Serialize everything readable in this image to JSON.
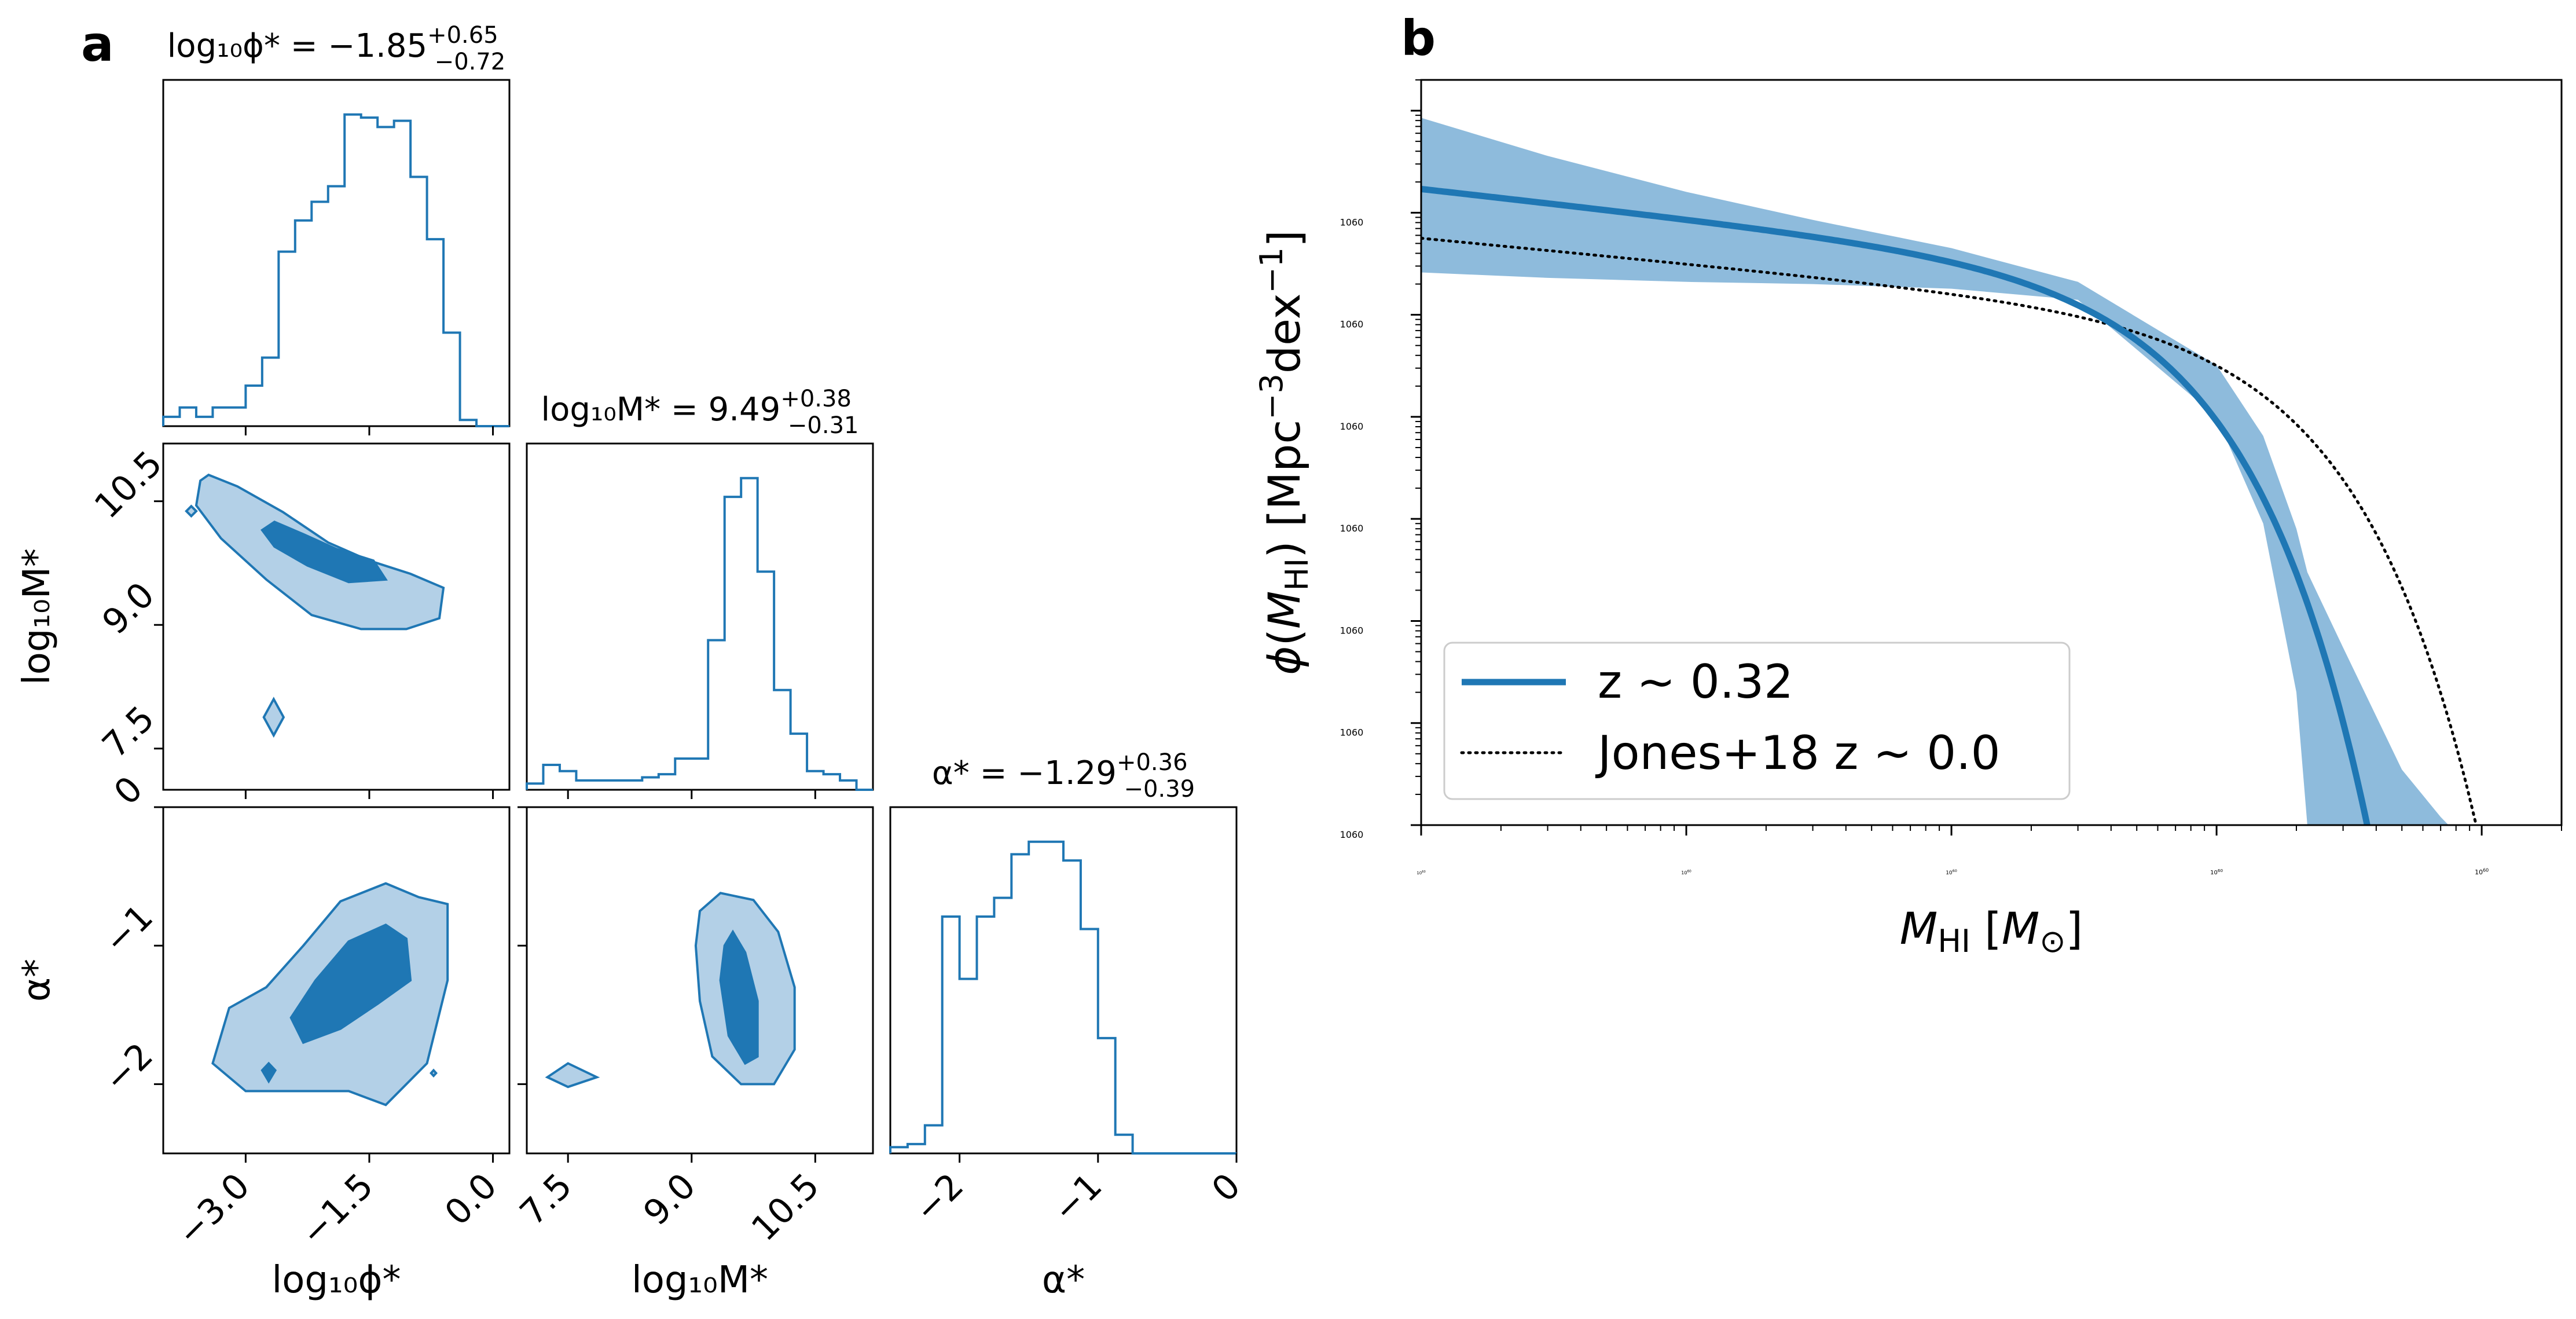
{
  "panels": {
    "a": {
      "letter": "a"
    },
    "b": {
      "letter": "b"
    }
  },
  "colors": {
    "series": "#1f77b4",
    "band": "#8ebbdc",
    "contour_outer": "#b3d0e7",
    "contour_inner": "#1f77b4",
    "reference": "#000000"
  },
  "chart_data": [
    {
      "type": "corner",
      "panel": "a",
      "parameters": [
        {
          "name": "log10phi",
          "axis_label": "log₁₀ϕ*",
          "title": {
            "prefix": "log₁₀ϕ* = −1.85",
            "plus": "+0.65",
            "minus": "−0.72"
          },
          "range": [
            -4.0,
            0.2
          ],
          "ticks": [
            "−3.0",
            "−1.5",
            "0.0"
          ],
          "tick_values": [
            -3.0,
            -1.5,
            0.0
          ]
        },
        {
          "name": "log10M",
          "axis_label": "log₁₀M*",
          "title": {
            "prefix": "log₁₀M* = 9.49",
            "plus": "+0.38",
            "minus": "−0.31"
          },
          "range": [
            7.0,
            11.2
          ],
          "ticks": [
            "7.5",
            "9.0",
            "10.5"
          ],
          "tick_values": [
            7.5,
            9.0,
            10.5
          ]
        },
        {
          "name": "alpha",
          "axis_label": "α*",
          "title": {
            "prefix": "α* = −1.29",
            "plus": "+0.36",
            "minus": "−0.39"
          },
          "range": [
            -2.5,
            0.0
          ],
          "ticks": [
            "−2",
            "−1",
            "0"
          ],
          "tick_values": [
            -2,
            -1,
            0
          ]
        }
      ],
      "histograms": [
        {
          "param": "log10phi",
          "edges_start": -4.0,
          "bin_width": 0.2,
          "counts": [
            0.03,
            0.06,
            0.03,
            0.06,
            0.06,
            0.13,
            0.22,
            0.56,
            0.66,
            0.72,
            0.77,
            1.0,
            0.99,
            0.96,
            0.98,
            0.8,
            0.6,
            0.3,
            0.02,
            0.0,
            0.0
          ]
        },
        {
          "param": "log10M",
          "edges_start": 7.0,
          "bin_width": 0.2,
          "counts": [
            0.02,
            0.08,
            0.06,
            0.03,
            0.03,
            0.03,
            0.03,
            0.04,
            0.05,
            0.1,
            0.1,
            0.48,
            0.94,
            1.0,
            0.7,
            0.32,
            0.18,
            0.06,
            0.05,
            0.03,
            0.0
          ]
        },
        {
          "param": "alpha",
          "edges_start": -2.5,
          "bin_width": 0.125,
          "counts": [
            0.02,
            0.03,
            0.09,
            0.76,
            0.56,
            0.76,
            0.82,
            0.96,
            1.0,
            1.0,
            0.94,
            0.72,
            0.37,
            0.06,
            0.0,
            0.0,
            0.0,
            0.0,
            0.0,
            0.0
          ]
        }
      ],
      "contours": [
        {
          "x": "log10phi",
          "y": "log10M",
          "outer": [
            [
              -3.45,
              10.82
            ],
            [
              -3.1,
              10.68
            ],
            [
              -2.55,
              10.37
            ],
            [
              -2.0,
              10.0
            ],
            [
              -1.5,
              9.78
            ],
            [
              -1.0,
              9.62
            ],
            [
              -0.6,
              9.45
            ],
            [
              -0.65,
              9.08
            ],
            [
              -1.05,
              8.95
            ],
            [
              -1.6,
              8.95
            ],
            [
              -2.2,
              9.12
            ],
            [
              -2.75,
              9.55
            ],
            [
              -3.3,
              10.05
            ],
            [
              -3.6,
              10.45
            ],
            [
              -3.55,
              10.75
            ]
          ],
          "inner": [
            [
              -2.65,
              10.25
            ],
            [
              -2.3,
              10.1
            ],
            [
              -1.9,
              9.92
            ],
            [
              -1.45,
              9.78
            ],
            [
              -1.3,
              9.55
            ],
            [
              -1.75,
              9.52
            ],
            [
              -2.25,
              9.72
            ],
            [
              -2.65,
              9.95
            ],
            [
              -2.8,
              10.15
            ]
          ],
          "islands": [
            {
              "outer": [
                [
                  -3.72,
                  10.38
                ],
                [
                  -3.66,
                  10.44
                ],
                [
                  -3.6,
                  10.38
                ],
                [
                  -3.66,
                  10.32
                ]
              ]
            },
            {
              "outer": [
                [
                  -2.78,
                  7.88
                ],
                [
                  -2.66,
                  8.1
                ],
                [
                  -2.54,
                  7.88
                ],
                [
                  -2.66,
                  7.66
                ]
              ]
            }
          ]
        },
        {
          "x": "log10phi",
          "y": "alpha",
          "outer": [
            [
              -2.3,
              -1.0
            ],
            [
              -1.85,
              -0.68
            ],
            [
              -1.3,
              -0.55
            ],
            [
              -0.9,
              -0.65
            ],
            [
              -0.55,
              -0.7
            ],
            [
              -0.55,
              -1.25
            ],
            [
              -0.8,
              -1.85
            ],
            [
              -1.3,
              -2.15
            ],
            [
              -1.75,
              -2.05
            ],
            [
              -2.35,
              -2.05
            ],
            [
              -3.0,
              -2.05
            ],
            [
              -3.4,
              -1.85
            ],
            [
              -3.2,
              -1.45
            ],
            [
              -2.75,
              -1.3
            ]
          ],
          "inner": [
            [
              -2.15,
              -1.25
            ],
            [
              -1.75,
              -0.97
            ],
            [
              -1.3,
              -0.85
            ],
            [
              -1.05,
              -0.95
            ],
            [
              -1.0,
              -1.25
            ],
            [
              -1.4,
              -1.42
            ],
            [
              -1.85,
              -1.6
            ],
            [
              -2.3,
              -1.7
            ],
            [
              -2.45,
              -1.52
            ]
          ],
          "islands": [
            {
              "inner": [
                [
                  -2.8,
                  -1.9
                ],
                [
                  -2.72,
                  -1.85
                ],
                [
                  -2.64,
                  -1.9
                ],
                [
                  -2.72,
                  -1.98
                ]
              ]
            },
            {
              "outer": [
                [
                  -0.75,
                  -1.92
                ],
                [
                  -0.72,
                  -1.9
                ],
                [
                  -0.69,
                  -1.92
                ],
                [
                  -0.72,
                  -1.94
                ]
              ]
            }
          ]
        },
        {
          "x": "log10M",
          "y": "alpha",
          "outer": [
            [
              9.1,
              -0.75
            ],
            [
              9.35,
              -0.62
            ],
            [
              9.75,
              -0.67
            ],
            [
              10.05,
              -0.9
            ],
            [
              10.25,
              -1.3
            ],
            [
              10.25,
              -1.75
            ],
            [
              10.0,
              -2.0
            ],
            [
              9.6,
              -2.0
            ],
            [
              9.25,
              -1.8
            ],
            [
              9.1,
              -1.4
            ],
            [
              9.05,
              -1.0
            ]
          ],
          "inner": [
            [
              9.5,
              -0.9
            ],
            [
              9.65,
              -1.05
            ],
            [
              9.8,
              -1.4
            ],
            [
              9.8,
              -1.8
            ],
            [
              9.65,
              -1.85
            ],
            [
              9.45,
              -1.65
            ],
            [
              9.35,
              -1.25
            ],
            [
              9.4,
              -1.0
            ]
          ],
          "islands": [
            {
              "outer": [
                [
                  7.25,
                  -1.95
                ],
                [
                  7.5,
                  -1.85
                ],
                [
                  7.85,
                  -1.95
                ],
                [
                  7.5,
                  -2.02
                ]
              ]
            }
          ]
        }
      ]
    },
    {
      "type": "line",
      "panel": "b",
      "xlabel": "M_HI [M_⊙]",
      "ylabel": "ϕ(M_HI) [Mpc⁻³dex⁻¹]",
      "xscale": "log",
      "yscale": "log",
      "xlim": [
        10000000,
        200000000000
      ],
      "ylim": [
        1e-07,
        2
      ],
      "x_ticks": [
        {
          "value": 10000000.0,
          "label": "10",
          "exp": "7"
        },
        {
          "value": 100000000.0,
          "label": "10",
          "exp": "8"
        },
        {
          "value": 1000000000.0,
          "label": "10",
          "exp": "9"
        },
        {
          "value": 10000000000.0,
          "label": "10",
          "exp": "10"
        },
        {
          "value": 100000000000.0,
          "label": "10",
          "exp": "11"
        }
      ],
      "y_ticks": [
        {
          "value": 1e-07,
          "label": "10",
          "exp": "−7"
        },
        {
          "value": 1e-06,
          "label": "10",
          "exp": "−6"
        },
        {
          "value": 1e-05,
          "label": "10",
          "exp": "−5"
        },
        {
          "value": 0.0001,
          "label": "10",
          "exp": "−4"
        },
        {
          "value": 0.001,
          "label": "10",
          "exp": "−3"
        },
        {
          "value": 0.01,
          "label": "10",
          "exp": "−2"
        },
        {
          "value": 0.1,
          "label": "10",
          "exp": "−1"
        },
        {
          "value": 1,
          "label": "10",
          "exp": "0"
        }
      ],
      "series": [
        {
          "name": "z ∼ 0.32",
          "style": "solid",
          "schechter": {
            "phi_star": 0.0141,
            "m_star": 3090000000,
            "alpha": -1.29
          },
          "band": {
            "x": [
              10000000.0,
              30000000.0,
              100000000.0,
              300000000.0,
              1000000000.0,
              3000000000.0,
              10000000000.0,
              15000000000.0,
              20000000000.0,
              22000000000.0,
              30000000000.0,
              50000000000.0,
              70000000000.0,
              75000000000.0
            ],
            "lower": [
              0.026,
              0.023,
              0.021,
              0.02,
              0.018,
              0.014,
              0.001,
              9e-05,
              2e-06,
              1e-07,
              1e-07,
              1e-07,
              1e-07,
              1e-07
            ],
            "upper": [
              0.85,
              0.36,
              0.16,
              0.085,
              0.045,
              0.021,
              0.0032,
              0.00065,
              8e-05,
              3e-05,
              5.5e-06,
              3.5e-07,
              1.2e-07,
              1e-07
            ]
          }
        },
        {
          "name": "Jones+18 z ∼ 0.0",
          "style": "dotted",
          "schechter": {
            "phi_star": 0.0045,
            "m_star": 8700000000,
            "alpha": -1.25
          }
        }
      ],
      "legend": "lower-left"
    }
  ]
}
